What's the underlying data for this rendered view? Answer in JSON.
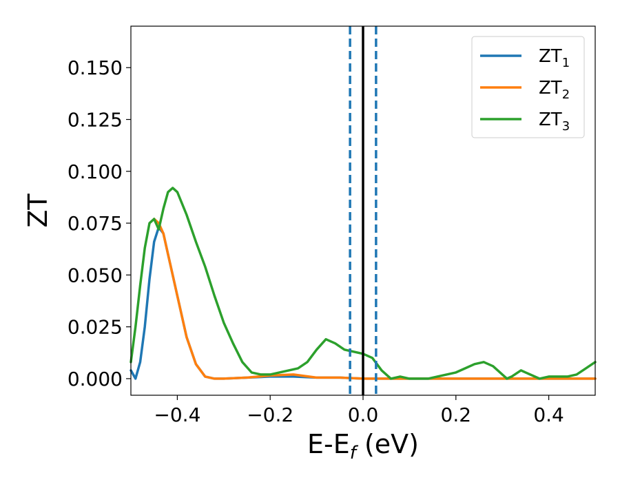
{
  "chart_data": {
    "type": "line",
    "title": "",
    "xlabel": "E-E",
    "xlabel_sub": "f",
    "xlabel_unit": " (eV)",
    "ylabel": "ZT",
    "xlim": [
      -0.5,
      0.5
    ],
    "ylim": [
      -0.008,
      0.17
    ],
    "xticks": [
      -0.4,
      -0.2,
      0.0,
      0.2,
      0.4
    ],
    "xtick_labels": [
      "−0.4",
      "−0.2",
      "0.0",
      "0.2",
      "0.4"
    ],
    "yticks": [
      0.0,
      0.025,
      0.05,
      0.075,
      0.1,
      0.125,
      0.15
    ],
    "ytick_labels": [
      "0.000",
      "0.025",
      "0.050",
      "0.075",
      "0.100",
      "0.125",
      "0.150"
    ],
    "grid": false,
    "legend_position": "top-right",
    "series": [
      {
        "name": "ZT",
        "name_sub": "1",
        "color": "#1f77b4",
        "x": [
          -0.5,
          -0.49,
          -0.48,
          -0.47,
          -0.46,
          -0.45,
          -0.44,
          -0.43,
          -0.42,
          -0.4,
          -0.38,
          -0.36,
          -0.34,
          -0.32,
          -0.3,
          -0.2,
          -0.15,
          -0.1,
          -0.05,
          0.0,
          0.05,
          0.1,
          0.2,
          0.3,
          0.4,
          0.5
        ],
        "y": [
          0.004,
          0.0,
          0.008,
          0.025,
          0.048,
          0.066,
          0.073,
          0.07,
          0.06,
          0.04,
          0.02,
          0.007,
          0.001,
          0.0,
          0.0,
          0.001,
          0.001,
          0.0005,
          0.0005,
          0.0,
          0.0,
          0.0,
          0.0,
          0.0,
          0.0,
          0.0
        ]
      },
      {
        "name": "ZT",
        "name_sub": "2",
        "color": "#ff7f0e",
        "x": [
          -0.45,
          -0.44,
          -0.43,
          -0.42,
          -0.4,
          -0.38,
          -0.36,
          -0.34,
          -0.32,
          -0.3,
          -0.25,
          -0.2,
          -0.15,
          -0.1,
          -0.05,
          0.0,
          0.05,
          0.1,
          0.2,
          0.3,
          0.4,
          0.5
        ],
        "y": [
          0.077,
          0.075,
          0.07,
          0.06,
          0.04,
          0.02,
          0.007,
          0.001,
          0.0,
          0.0,
          0.0005,
          0.0015,
          0.002,
          0.0005,
          0.0005,
          0.0,
          0.0,
          0.0,
          0.0,
          0.0,
          0.0,
          0.0
        ]
      },
      {
        "name": "ZT",
        "name_sub": "3",
        "color": "#2ca02c",
        "x": [
          -0.5,
          -0.49,
          -0.48,
          -0.47,
          -0.46,
          -0.45,
          -0.44,
          -0.43,
          -0.42,
          -0.41,
          -0.4,
          -0.38,
          -0.36,
          -0.34,
          -0.32,
          -0.3,
          -0.28,
          -0.26,
          -0.24,
          -0.22,
          -0.2,
          -0.18,
          -0.16,
          -0.14,
          -0.12,
          -0.1,
          -0.08,
          -0.06,
          -0.04,
          -0.02,
          0.0,
          0.02,
          0.04,
          0.06,
          0.08,
          0.1,
          0.12,
          0.14,
          0.16,
          0.18,
          0.2,
          0.22,
          0.24,
          0.26,
          0.28,
          0.3,
          0.31,
          0.32,
          0.34,
          0.36,
          0.38,
          0.4,
          0.42,
          0.44,
          0.46,
          0.48,
          0.5
        ],
        "y": [
          0.008,
          0.025,
          0.045,
          0.063,
          0.075,
          0.077,
          0.072,
          0.082,
          0.09,
          0.092,
          0.09,
          0.079,
          0.066,
          0.054,
          0.04,
          0.027,
          0.017,
          0.008,
          0.003,
          0.002,
          0.002,
          0.003,
          0.004,
          0.005,
          0.008,
          0.014,
          0.019,
          0.017,
          0.014,
          0.013,
          0.012,
          0.01,
          0.004,
          0.0,
          0.001,
          0.0,
          0.0,
          0.0,
          0.001,
          0.002,
          0.003,
          0.005,
          0.007,
          0.008,
          0.006,
          0.002,
          0.0,
          0.001,
          0.004,
          0.002,
          0.0,
          0.001,
          0.001,
          0.001,
          0.002,
          0.005,
          0.008
        ]
      }
    ],
    "vlines": [
      {
        "x": -0.028,
        "style": "dashed",
        "color": "#1f77b4"
      },
      {
        "x": 0.0,
        "style": "solid",
        "color": "#000000"
      },
      {
        "x": 0.028,
        "style": "dashed",
        "color": "#1f77b4"
      }
    ]
  }
}
